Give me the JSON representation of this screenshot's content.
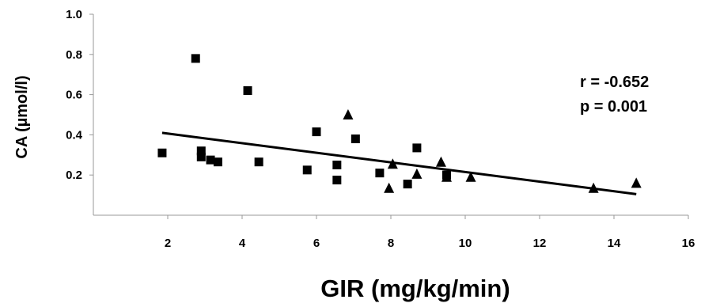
{
  "chart_data": {
    "type": "scatter",
    "title": "",
    "xlabel": "GIR (mg/kg/min)",
    "ylabel": "CA (µmol/l)",
    "xlim": [
      0,
      16
    ],
    "ylim": [
      0,
      1.0
    ],
    "x_ticks": [
      "2",
      "4",
      "6",
      "8",
      "10",
      "12",
      "14",
      "16"
    ],
    "y_ticks": [
      "0.2",
      "0.4",
      "0.6",
      "0.8",
      "1.0"
    ],
    "grid": false,
    "series": [
      {
        "marker": "square",
        "color": "#000000",
        "points": [
          [
            1.85,
            0.31
          ],
          [
            2.75,
            0.78
          ],
          [
            2.9,
            0.32
          ],
          [
            2.9,
            0.29
          ],
          [
            3.15,
            0.275
          ],
          [
            3.35,
            0.265
          ],
          [
            4.15,
            0.62
          ],
          [
            4.45,
            0.265
          ],
          [
            5.75,
            0.225
          ],
          [
            6.0,
            0.415
          ],
          [
            6.55,
            0.25
          ],
          [
            6.55,
            0.175
          ],
          [
            7.05,
            0.38
          ],
          [
            7.7,
            0.21
          ],
          [
            8.45,
            0.155
          ],
          [
            8.7,
            0.335
          ],
          [
            9.5,
            0.2
          ]
        ]
      },
      {
        "marker": "triangle",
        "color": "#000000",
        "points": [
          [
            6.85,
            0.5
          ],
          [
            7.95,
            0.135
          ],
          [
            8.05,
            0.255
          ],
          [
            8.7,
            0.205
          ],
          [
            9.35,
            0.265
          ],
          [
            9.5,
            0.19
          ],
          [
            10.15,
            0.19
          ],
          [
            13.45,
            0.135
          ],
          [
            14.6,
            0.16
          ]
        ]
      }
    ],
    "trendline": {
      "x": [
        1.85,
        14.6
      ],
      "y": [
        0.41,
        0.105
      ],
      "color": "#000000"
    },
    "annotations": [
      "r = -0.652",
      "p = 0.001"
    ]
  }
}
